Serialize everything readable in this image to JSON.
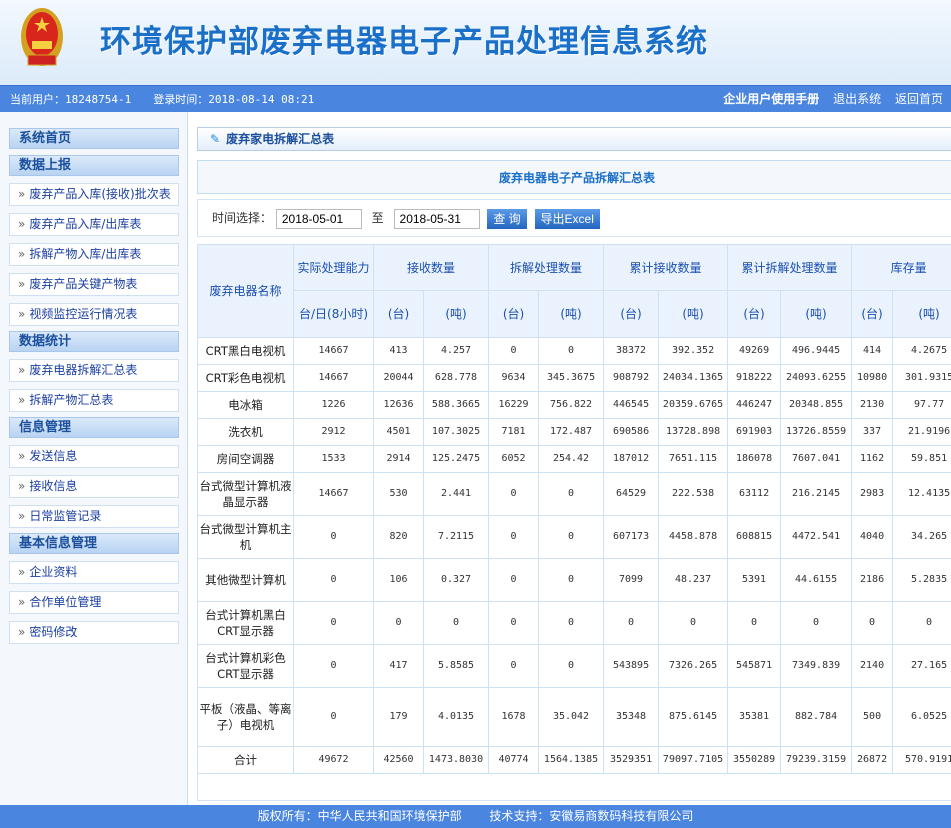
{
  "header": {
    "title": "环境保护部废弃电器电子产品处理信息系统"
  },
  "topbar": {
    "user_label": "当前用户：18248754-1",
    "login_label": "登录时间：2018-08-14 08:21",
    "links": [
      "企业用户使用手册",
      "退出系统",
      "返回首页"
    ]
  },
  "sidebar": {
    "home": "系统首页",
    "groups": [
      {
        "title": "数据上报",
        "items": [
          "废弃产品入库(接收)批次表",
          "废弃产品入库/出库表",
          "拆解产物入库/出库表",
          "废弃产品关键产物表",
          "视频监控运行情况表"
        ]
      },
      {
        "title": "数据统计",
        "items": [
          "废弃电器拆解汇总表",
          "拆解产物汇总表"
        ]
      },
      {
        "title": "信息管理",
        "items": [
          "发送信息",
          "接收信息",
          "日常监管记录"
        ]
      },
      {
        "title": "基本信息管理",
        "items": [
          "企业资料",
          "合作单位管理",
          "密码修改"
        ]
      }
    ]
  },
  "page": {
    "title": "废弃家电拆解汇总表",
    "report_title": "废弃电器电子产品拆解汇总表"
  },
  "filter": {
    "label": "时间选择：",
    "start": "2018-05-01",
    "sep": "至",
    "end": "2018-05-31",
    "query": "查 询",
    "export": "导出Excel"
  },
  "table": {
    "headers": {
      "name": "废弃电器名称",
      "capacity": "实际处理能力",
      "capacity_unit": "台/日(8小时)",
      "groups": [
        "接收数量",
        "拆解处理数量",
        "累计接收数量",
        "累计拆解处理数量",
        "库存量"
      ],
      "unit_tai": "(台)",
      "unit_dun": "(吨)"
    },
    "rows": [
      [
        "CRT黑白电视机",
        "14667",
        "413",
        "4.257",
        "0",
        "0",
        "38372",
        "392.352",
        "49269",
        "496.9445",
        "414",
        "4.2675"
      ],
      [
        "CRT彩色电视机",
        "14667",
        "20044",
        "628.778",
        "9634",
        "345.3675",
        "908792",
        "24034.1365",
        "918222",
        "24093.6255",
        "10980",
        "301.9315"
      ],
      [
        "电冰箱",
        "1226",
        "12636",
        "588.3665",
        "16229",
        "756.822",
        "446545",
        "20359.6765",
        "446247",
        "20348.855",
        "2130",
        "97.77"
      ],
      [
        "洗衣机",
        "2912",
        "4501",
        "107.3025",
        "7181",
        "172.487",
        "690586",
        "13728.898",
        "691903",
        "13726.8559",
        "337",
        "21.9196"
      ],
      [
        "房间空调器",
        "1533",
        "2914",
        "125.2475",
        "6052",
        "254.42",
        "187012",
        "7651.115",
        "186078",
        "7607.041",
        "1162",
        "59.851"
      ],
      [
        "台式微型计算机液晶显示器",
        "14667",
        "530",
        "2.441",
        "0",
        "0",
        "64529",
        "222.538",
        "63112",
        "216.2145",
        "2983",
        "12.4135"
      ],
      [
        "台式微型计算机主机",
        "0",
        "820",
        "7.2115",
        "0",
        "0",
        "607173",
        "4458.878",
        "608815",
        "4472.541",
        "4040",
        "34.265"
      ],
      [
        "其他微型计算机",
        "0",
        "106",
        "0.327",
        "0",
        "0",
        "7099",
        "48.237",
        "5391",
        "44.6155",
        "2186",
        "5.2835"
      ],
      [
        "台式计算机黑白CRT显示器",
        "0",
        "0",
        "0",
        "0",
        "0",
        "0",
        "0",
        "0",
        "0",
        "0",
        "0"
      ],
      [
        "台式计算机彩色CRT显示器",
        "0",
        "417",
        "5.8585",
        "0",
        "0",
        "543895",
        "7326.265",
        "545871",
        "7349.839",
        "2140",
        "27.165"
      ],
      [
        "平板（液晶、等离子）电视机",
        "0",
        "179",
        "4.0135",
        "1678",
        "35.042",
        "35348",
        "875.6145",
        "35381",
        "882.784",
        "500",
        "6.0525"
      ],
      [
        "合计",
        "49672",
        "42560",
        "1473.8030",
        "40774",
        "1564.1385",
        "3529351",
        "79097.7105",
        "3550289",
        "79239.3159",
        "26872",
        "570.9191"
      ]
    ]
  },
  "footer": {
    "copyright": "版权所有：中华人民共和国环境保护部",
    "support": "技术支持：安徽易商数码科技有限公司"
  },
  "colors": {
    "accent": "#4a86e0",
    "title": "#1a6fc8",
    "link": "#1a3fa0"
  }
}
